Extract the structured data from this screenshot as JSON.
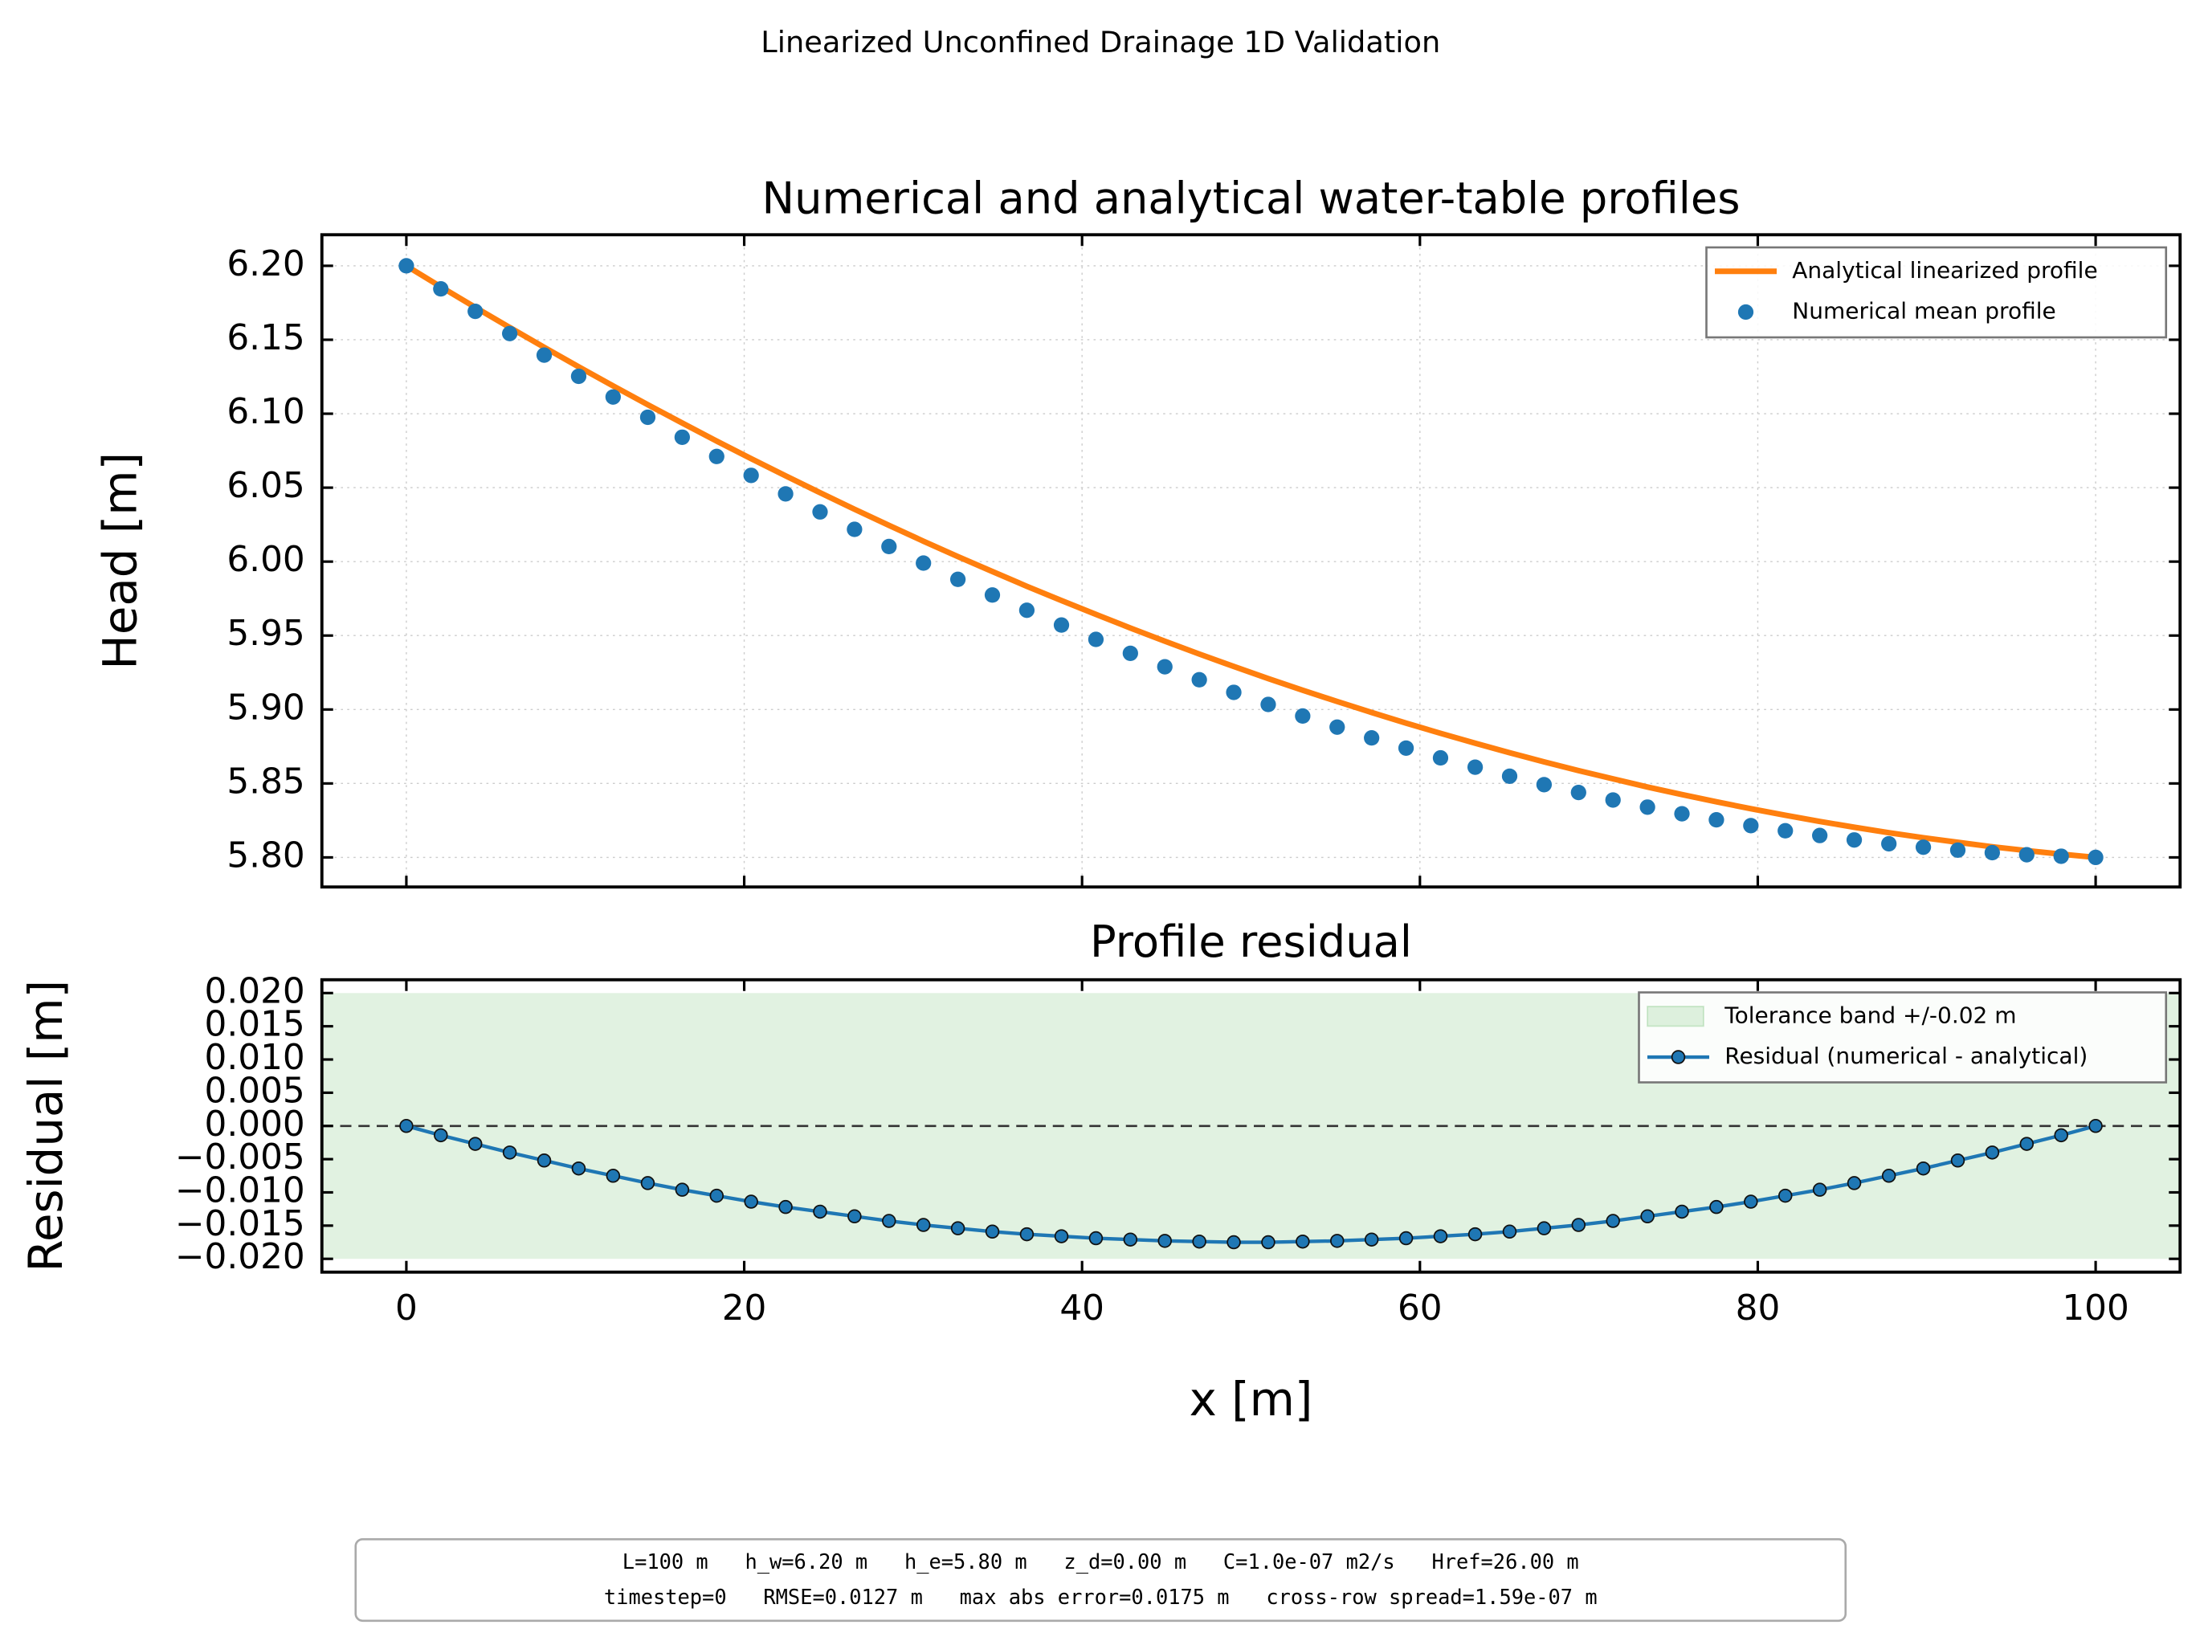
{
  "title": "Linearized Unconfined Drainage 1D Validation",
  "footer": [
    "L=100 m   h_w=6.20 m   h_e=5.80 m   z_d=0.00 m   C=1.0e-07 m2/s   Href=26.00 m",
    "timestep=0   RMSE=0.0127 m   max abs error=0.0175 m   cross-row spread=1.59e-07 m"
  ],
  "chart_data": [
    {
      "type": "line",
      "title": "Numerical and analytical water-table profiles",
      "y_label": "Head [m]",
      "sharex": true,
      "grid": true,
      "legend": "upper right",
      "x": [
        0,
        2.04,
        4.08,
        6.12,
        8.16,
        10.2,
        12.24,
        14.29,
        16.33,
        18.37,
        20.41,
        22.45,
        24.49,
        26.53,
        28.57,
        30.61,
        32.65,
        34.69,
        36.73,
        38.78,
        40.82,
        42.86,
        44.9,
        46.94,
        48.98,
        51.02,
        53.06,
        55.1,
        57.14,
        59.18,
        61.22,
        63.27,
        65.31,
        67.35,
        69.39,
        71.43,
        73.47,
        75.51,
        77.55,
        79.59,
        81.63,
        83.67,
        85.71,
        87.76,
        89.8,
        91.84,
        93.88,
        95.92,
        97.96,
        100
      ],
      "xlim": [
        -5,
        105
      ],
      "xticks": [
        0,
        20,
        40,
        60,
        80,
        100
      ],
      "ylim": [
        5.78,
        6.221
      ],
      "yticks": [
        {
          "value": 5.8,
          "label": "5.80"
        },
        5.85,
        {
          "value": 5.9,
          "label": "5.90"
        },
        5.95,
        {
          "value": 6.0,
          "label": "6.00"
        },
        6.05,
        {
          "value": 6.1,
          "label": "6.10"
        },
        6.15,
        {
          "value": 6.2,
          "label": "6.20"
        }
      ],
      "series": [
        {
          "name": "Analytical linearized profile",
          "type": "line",
          "color": "#ff7f0e",
          "values": [
            6.2,
            6.1858,
            6.1719,
            6.1583,
            6.1449,
            6.1317,
            6.1188,
            6.1061,
            6.0937,
            6.0815,
            6.0696,
            6.058,
            6.0466,
            6.0354,
            6.0245,
            6.0138,
            6.0034,
            5.9933,
            5.9833,
            5.9737,
            5.9643,
            5.9551,
            5.9462,
            5.9375,
            5.9291,
            5.9209,
            5.913,
            5.9054,
            5.898,
            5.8908,
            5.8839,
            5.8772,
            5.8708,
            5.8646,
            5.8587,
            5.8531,
            5.8476,
            5.8425,
            5.8376,
            5.8329,
            5.8285,
            5.8243,
            5.8204,
            5.8167,
            5.8133,
            5.8102,
            5.8072,
            5.8046,
            5.8022,
            5.8
          ]
        },
        {
          "name": "Numerical mean profile",
          "type": "scatter",
          "color": "#1f77b4",
          "values": [
            6.2,
            6.1844,
            6.1692,
            6.1542,
            6.1396,
            6.1253,
            6.1113,
            6.0976,
            6.0841,
            6.0711,
            6.0583,
            6.0458,
            6.0336,
            6.0218,
            6.0102,
            5.999,
            5.988,
            5.9774,
            5.9671,
            5.9571,
            5.9474,
            5.938,
            5.9289,
            5.9201,
            5.9116,
            5.9034,
            5.8956,
            5.8881,
            5.8808,
            5.8739,
            5.8673,
            5.861,
            5.8549,
            5.8492,
            5.8439,
            5.8388,
            5.834,
            5.8295,
            5.8254,
            5.8215,
            5.818,
            5.8148,
            5.8118,
            5.8092,
            5.8069,
            5.8049,
            5.8032,
            5.8018,
            5.8008,
            5.8
          ]
        }
      ]
    },
    {
      "type": "line",
      "title": "Profile residual",
      "y_label": "Residual [m]",
      "x_label": "x [m]",
      "legend": "upper right",
      "x": [
        0,
        2.04,
        4.08,
        6.12,
        8.16,
        10.2,
        12.24,
        14.29,
        16.33,
        18.37,
        20.41,
        22.45,
        24.49,
        26.53,
        28.57,
        30.61,
        32.65,
        34.69,
        36.73,
        38.78,
        40.82,
        42.86,
        44.9,
        46.94,
        48.98,
        51.02,
        53.06,
        55.1,
        57.14,
        59.18,
        61.22,
        63.27,
        65.31,
        67.35,
        69.39,
        71.43,
        73.47,
        75.51,
        77.55,
        79.59,
        81.63,
        83.67,
        85.71,
        87.76,
        89.8,
        91.84,
        93.88,
        95.92,
        97.96,
        100
      ],
      "xlim": [
        -5,
        105
      ],
      "xticks": [
        0,
        20,
        40,
        60,
        80,
        100
      ],
      "ylim": [
        -0.022,
        0.022
      ],
      "yticks": [
        {
          "value": -0.02,
          "label": "−0.020"
        },
        {
          "value": -0.015,
          "label": "−0.015"
        },
        {
          "value": -0.01,
          "label": "−0.010"
        },
        {
          "value": -0.005,
          "label": "−0.005"
        },
        {
          "value": 0,
          "label": "0.000"
        },
        {
          "value": 0.005,
          "label": "0.005"
        },
        {
          "value": 0.01,
          "label": "0.010"
        },
        {
          "value": 0.015,
          "label": "0.015"
        },
        {
          "value": 0.02,
          "label": "0.020"
        }
      ],
      "band": {
        "label": "Tolerance band +/-0.02 m",
        "values": [
          -0.02,
          0.02
        ],
        "color": "#2ca02c"
      },
      "reference_line": 0,
      "series": [
        {
          "name": "Residual (numerical - analytical)",
          "type": "line",
          "marker": true,
          "color": "#1f77b4",
          "values": [
            0,
            -0.0014,
            -0.0027,
            -0.004,
            -0.0052,
            -0.0064,
            -0.0075,
            -0.0086,
            -0.0096,
            -0.0105,
            -0.0114,
            -0.0122,
            -0.0129,
            -0.0136,
            -0.0143,
            -0.0149,
            -0.0154,
            -0.0159,
            -0.0163,
            -0.0166,
            -0.0169,
            -0.0171,
            -0.0173,
            -0.0174,
            -0.0175,
            -0.0175,
            -0.0174,
            -0.0173,
            -0.0171,
            -0.0169,
            -0.0166,
            -0.0163,
            -0.0159,
            -0.0154,
            -0.0149,
            -0.0143,
            -0.0136,
            -0.0129,
            -0.0122,
            -0.0114,
            -0.0105,
            -0.0096,
            -0.0086,
            -0.0075,
            -0.0064,
            -0.0052,
            -0.004,
            -0.0027,
            -0.0014,
            0
          ]
        }
      ]
    }
  ]
}
